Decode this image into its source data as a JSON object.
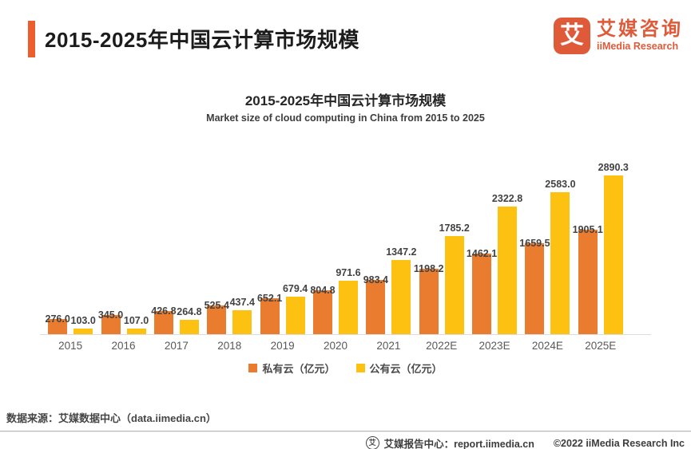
{
  "header": {
    "title": "2015-2025年中国云计算市场规模",
    "logo": {
      "glyph": "艾",
      "name": "艾媒咨询",
      "subtitle": "iiMedia Research",
      "brand_color": "#DF5A38"
    },
    "accent_color": "#ED5E2E"
  },
  "chart_data": {
    "type": "bar",
    "title": "2015-2025年中国云计算市场规模",
    "subtitle": "Market size of cloud computing in China from 2015 to 2025",
    "categories": [
      "2015",
      "2016",
      "2017",
      "2018",
      "2019",
      "2020",
      "2021",
      "2022E",
      "2023E",
      "2024E",
      "2025E"
    ],
    "series": [
      {
        "name": "私有云（亿元）",
        "color": "#EA7C2F",
        "label_position": "top-straddle",
        "values": [
          276.0,
          345.0,
          426.8,
          525.4,
          652.1,
          804.8,
          983.4,
          1198.2,
          1462.1,
          1659.5,
          1905.1
        ]
      },
      {
        "name": "公有云（亿元）",
        "color": "#FDC112",
        "label_position": "above",
        "values": [
          103.0,
          107.0,
          264.8,
          437.4,
          679.4,
          971.6,
          1347.2,
          1785.2,
          2322.8,
          2583.0,
          2890.3
        ]
      }
    ],
    "ylim": [
      0,
      2900
    ],
    "grid": false,
    "data_labels": true,
    "label_decimals": 1,
    "legend_position": "bottom"
  },
  "footer": {
    "source": "数据来源：艾媒数据中心（data.iimedia.cn）",
    "report_center": "艾媒报告中心：report.iimedia.cn",
    "copyright": "©2022 iiMedia Research Inc",
    "footer_logo_glyph": "艾"
  }
}
